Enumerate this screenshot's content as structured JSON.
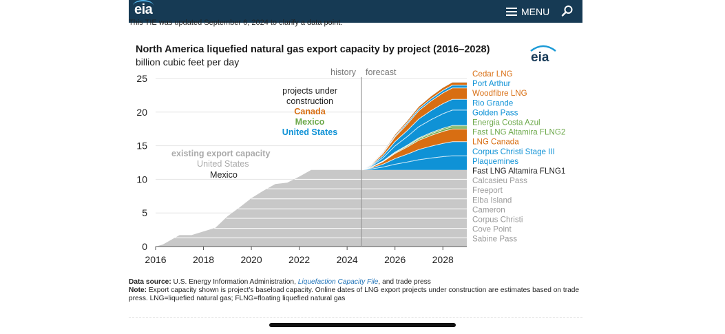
{
  "header": {
    "logo_text": "eia",
    "menu_label": "MENU"
  },
  "update_note": "This TIE was updated September 6, 2024 to clarify a data point.",
  "figure": {
    "logo_text": "eia"
  },
  "chart_data": {
    "type": "area",
    "title": "North America liquefied natural gas export capacity by project",
    "title_years": "(2016–2028)",
    "ylabel": "billion cubic feet per day",
    "xlabel": "",
    "xlim": [
      2016,
      2029
    ],
    "ylim": [
      0,
      25
    ],
    "x_ticks": [
      2016,
      2018,
      2020,
      2022,
      2024,
      2026,
      2028
    ],
    "y_ticks": [
      0,
      5,
      10,
      15,
      20,
      25
    ],
    "divider_year": 2024.6,
    "history_label": "history",
    "forecast_label": "forecast",
    "annotations": {
      "existing_title": "existing export capacity",
      "existing_us": "United States",
      "existing_mexico": "Mexico",
      "construction_title": "projects under construction",
      "construction_canada": "Canada",
      "construction_mexico": "Mexico",
      "construction_us": "United States"
    },
    "colors": {
      "existing": "#c8c8c8",
      "united_states": "#0f92d6",
      "canada": "#d86e12",
      "mexico": "#6da94b",
      "existing_line": "#ffffff"
    },
    "existing_total": {
      "x": [
        2016,
        2016.3,
        2017,
        2017.5,
        2018.5,
        2019,
        2019.5,
        2020,
        2020.5,
        2021,
        2021.5,
        2022,
        2022.5,
        2024.6,
        2029
      ],
      "y": [
        0,
        0.3,
        1.7,
        1.7,
        2.8,
        4.5,
        5.8,
        7.2,
        8.3,
        9.3,
        9.5,
        10.4,
        11.4,
        11.4,
        11.4
      ]
    },
    "construction_total": {
      "x": [
        2024.6,
        2025,
        2025.5,
        2026,
        2026.5,
        2027,
        2027.5,
        2028,
        2028.4,
        2029
      ],
      "y": [
        11.4,
        12.2,
        14.0,
        16.6,
        18.6,
        20.8,
        22.3,
        23.6,
        24.4,
        24.4
      ]
    },
    "existing_projects": [
      {
        "name": "Fast LNG Altamira FLNG1",
        "country": "Mexico",
        "value": 11.4,
        "label_color": "#222222"
      },
      {
        "name": "Calcasieu Pass",
        "country": "United States",
        "value": 10.0,
        "label_color": "#9a9a9a"
      },
      {
        "name": "Freeport",
        "country": "United States",
        "value": 8.6,
        "label_color": "#9a9a9a"
      },
      {
        "name": "Elba Island",
        "country": "United States",
        "value": 7.1,
        "label_color": "#9a9a9a"
      },
      {
        "name": "Cameron",
        "country": "United States",
        "value": 5.6,
        "label_color": "#9a9a9a"
      },
      {
        "name": "Corpus Christi",
        "country": "United States",
        "value": 4.2,
        "label_color": "#9a9a9a"
      },
      {
        "name": "Cove Point",
        "country": "United States",
        "value": 2.7,
        "label_color": "#9a9a9a"
      },
      {
        "name": "Sabine Pass",
        "country": "United States",
        "value": 1.3,
        "label_color": "#9a9a9a"
      }
    ],
    "construction_projects": [
      {
        "name": "Cedar LNG",
        "country": "Canada",
        "value": 24.4,
        "label_color": "#d86e12"
      },
      {
        "name": "Port Arthur",
        "country": "United States",
        "value": 24.0,
        "label_color": "#0f92d6"
      },
      {
        "name": "Woodfibre LNG",
        "country": "Canada",
        "value": 23.6,
        "label_color": "#d86e12"
      },
      {
        "name": "Rio Grande",
        "country": "United States",
        "value": 21.9,
        "label_color": "#0f92d6"
      },
      {
        "name": "Golden Pass",
        "country": "United States",
        "value": 20.3,
        "label_color": "#0f92d6"
      },
      {
        "name": "Energia Costa Azul",
        "country": "Mexico",
        "value": 18.0,
        "label_color": "#6da94b"
      },
      {
        "name": "Fast LNG Altamira FLNG2",
        "country": "Mexico",
        "value": 17.8,
        "label_color": "#6da94b"
      },
      {
        "name": "LNG Canada",
        "country": "Canada",
        "value": 17.5,
        "label_color": "#d86e12"
      },
      {
        "name": "Corpus Christi Stage III",
        "country": "United States",
        "value": 15.6,
        "label_color": "#0f92d6"
      },
      {
        "name": "Plaquemines",
        "country": "United States",
        "value": 13.5,
        "label_color": "#0f92d6"
      }
    ]
  },
  "footnotes": {
    "source_label": "Data source:",
    "source_text": " U.S. Energy Information Administration, ",
    "source_link": "Liquefaction Capacity File",
    "source_tail": ", and trade press",
    "note_label": "Note:",
    "note_text": " Export capacity shown is project's baseload capacity. Online dates of LNG export projects under construction are estimates based on trade press. LNG=liquefied natural gas; FLNG=floating liquefied natural gas"
  }
}
